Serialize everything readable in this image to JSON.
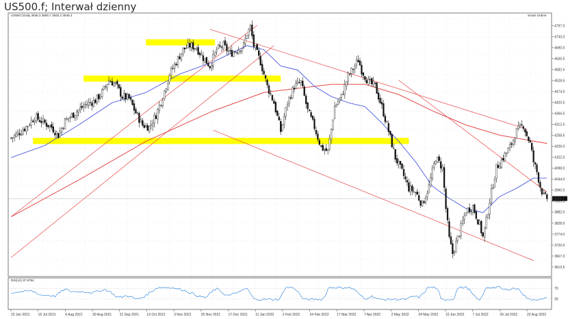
{
  "title": "US500.f; Interwał dzienny",
  "header": {
    "symbol_info": "US500.f,Daily  3935.3 3906.7 3932.2 3949.3",
    "indicator_name": "Smart Orders"
  },
  "rsi": {
    "label": "RSI(14) 37.8794",
    "levels": [
      "70",
      "30"
    ],
    "ylim": [
      0,
      100
    ],
    "color": "#3a8be0"
  },
  "colors": {
    "candle": "#111111",
    "ma50": "#3344dd",
    "ma200": "#e03030",
    "trendline": "#e84040",
    "zone": "#ffff00"
  },
  "chart_data": {
    "type": "candlestick",
    "ylim": [
      3613.5,
      4813.0
    ],
    "y_ticks": [
      "4797.0",
      "4743.0",
      "4690.0",
      "4636.5",
      "4582.5",
      "4528.5",
      "4474.5",
      "4420.5",
      "4366.5",
      "4312.5",
      "4258.5",
      "4206.0",
      "4152.0",
      "4098.0",
      "4044.0",
      "3990.0",
      "3936.0",
      "3882.0",
      "3828.0",
      "3774.0",
      "3720.0",
      "3667.0",
      "3613.5"
    ],
    "last_price": "3949.3",
    "x_labels": [
      "23 Jun 2021",
      "15 Jul 2021",
      "6 Aug 2021",
      "30 Aug 2021",
      "21 Sep 2021",
      "13 Oct 2021",
      "3 Nov 2021",
      "25 Nov 2021",
      "17 Dec 2021",
      "11 Jan 2022",
      "2 Feb 2022",
      "24 Feb 2022",
      "17 Mar 2022",
      "7 Apr 2022",
      "2 May 2022",
      "24 May 2022",
      "15 Jun 2022",
      "7 Jul 2022",
      "29 Jul 2022",
      "22 Aug 2022"
    ],
    "path_points": [
      [
        0,
        4246
      ],
      [
        6,
        4280
      ],
      [
        10,
        4310
      ],
      [
        14,
        4350
      ],
      [
        18,
        4330
      ],
      [
        24,
        4300
      ],
      [
        28,
        4260
      ],
      [
        32,
        4330
      ],
      [
        38,
        4370
      ],
      [
        44,
        4410
      ],
      [
        50,
        4430
      ],
      [
        54,
        4470
      ],
      [
        58,
        4530
      ],
      [
        62,
        4510
      ],
      [
        66,
        4450
      ],
      [
        70,
        4440
      ],
      [
        74,
        4370
      ],
      [
        78,
        4310
      ],
      [
        82,
        4300
      ],
      [
        86,
        4360
      ],
      [
        90,
        4450
      ],
      [
        94,
        4560
      ],
      [
        98,
        4620
      ],
      [
        102,
        4680
      ],
      [
        106,
        4700
      ],
      [
        110,
        4690
      ],
      [
        114,
        4640
      ],
      [
        118,
        4600
      ],
      [
        122,
        4680
      ],
      [
        126,
        4700
      ],
      [
        130,
        4660
      ],
      [
        134,
        4680
      ],
      [
        138,
        4700
      ],
      [
        140,
        4760
      ],
      [
        142,
        4790
      ],
      [
        144,
        4700
      ],
      [
        146,
        4660
      ],
      [
        148,
        4620
      ],
      [
        152,
        4500
      ],
      [
        156,
        4420
      ],
      [
        158,
        4350
      ],
      [
        160,
        4280
      ],
      [
        164,
        4420
      ],
      [
        168,
        4500
      ],
      [
        172,
        4520
      ],
      [
        176,
        4380
      ],
      [
        180,
        4300
      ],
      [
        184,
        4200
      ],
      [
        188,
        4180
      ],
      [
        192,
        4400
      ],
      [
        196,
        4450
      ],
      [
        200,
        4550
      ],
      [
        204,
        4600
      ],
      [
        206,
        4630
      ],
      [
        208,
        4580
      ],
      [
        212,
        4520
      ],
      [
        216,
        4500
      ],
      [
        220,
        4400
      ],
      [
        224,
        4280
      ],
      [
        228,
        4150
      ],
      [
        232,
        4080
      ],
      [
        236,
        4000
      ],
      [
        240,
        3980
      ],
      [
        244,
        3920
      ],
      [
        248,
        4010
      ],
      [
        252,
        4150
      ],
      [
        256,
        4100
      ],
      [
        258,
        3900
      ],
      [
        260,
        3750
      ],
      [
        262,
        3680
      ],
      [
        266,
        3780
      ],
      [
        270,
        3890
      ],
      [
        274,
        3910
      ],
      [
        278,
        3820
      ],
      [
        280,
        3760
      ],
      [
        282,
        3840
      ],
      [
        284,
        3940
      ],
      [
        288,
        4100
      ],
      [
        292,
        4150
      ],
      [
        296,
        4200
      ],
      [
        300,
        4280
      ],
      [
        304,
        4310
      ],
      [
        306,
        4260
      ],
      [
        308,
        4220
      ],
      [
        310,
        4130
      ],
      [
        312,
        4080
      ],
      [
        314,
        4010
      ],
      [
        316,
        3960
      ],
      [
        318,
        3950
      ]
    ],
    "ma50": [
      [
        0,
        4150
      ],
      [
        20,
        4210
      ],
      [
        40,
        4310
      ],
      [
        60,
        4420
      ],
      [
        80,
        4470
      ],
      [
        100,
        4560
      ],
      [
        120,
        4620
      ],
      [
        140,
        4700
      ],
      [
        150,
        4680
      ],
      [
        160,
        4600
      ],
      [
        170,
        4580
      ],
      [
        180,
        4500
      ],
      [
        190,
        4450
      ],
      [
        200,
        4420
      ],
      [
        210,
        4400
      ],
      [
        220,
        4320
      ],
      [
        230,
        4230
      ],
      [
        240,
        4130
      ],
      [
        250,
        4010
      ],
      [
        260,
        3950
      ],
      [
        270,
        3900
      ],
      [
        280,
        3880
      ],
      [
        290,
        3960
      ],
      [
        300,
        4000
      ],
      [
        310,
        4050
      ],
      [
        318,
        4050
      ]
    ],
    "ma200": [
      [
        0,
        3860
      ],
      [
        40,
        4040
      ],
      [
        80,
        4230
      ],
      [
        120,
        4380
      ],
      [
        150,
        4470
      ],
      [
        170,
        4490
      ],
      [
        190,
        4510
      ],
      [
        210,
        4510
      ],
      [
        230,
        4460
      ],
      [
        250,
        4380
      ],
      [
        270,
        4310
      ],
      [
        290,
        4260
      ],
      [
        318,
        4220
      ]
    ],
    "zones": [
      {
        "x1": 80,
        "x2": 121,
        "y": 4716
      },
      {
        "x1": 43,
        "x2": 160,
        "y": 4538
      },
      {
        "x1": 13,
        "x2": 236,
        "y": 4232
      }
    ],
    "trendlines": [
      {
        "x1": 0,
        "y1": 3860,
        "x2": 146,
        "y2": 4800
      },
      {
        "x1": 0,
        "y1": 3660,
        "x2": 156,
        "y2": 4700
      },
      {
        "x1": 118,
        "y1": 4780,
        "x2": 306,
        "y2": 4290
      },
      {
        "x1": 230,
        "y1": 4530,
        "x2": 318,
        "y2": 3980
      },
      {
        "x1": 120,
        "y1": 4285,
        "x2": 310,
        "y2": 3645
      }
    ]
  }
}
